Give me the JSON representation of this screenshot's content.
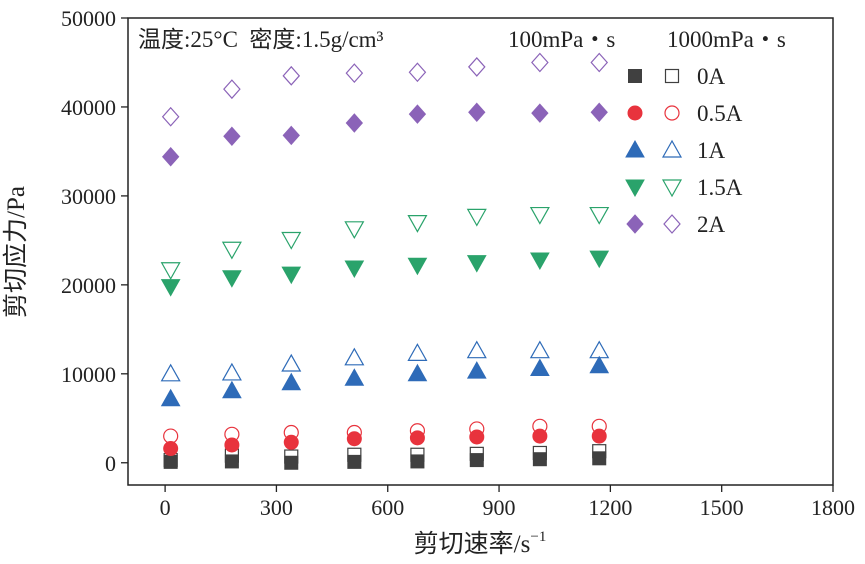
{
  "chart_data": {
    "type": "scatter",
    "title": "",
    "xlabel": "剪切速率/s",
    "xlabel_sup": "−1",
    "ylabel": "剪切应力/Pa",
    "xlim": [
      -100,
      1800
    ],
    "ylim": [
      -2500,
      50000
    ],
    "x_ticks": [
      0,
      300,
      600,
      900,
      1200,
      1500,
      1800
    ],
    "y_ticks": [
      0,
      10000,
      20000,
      30000,
      40000,
      50000
    ],
    "x_tick_labels": [
      "0",
      "300",
      "600",
      "900",
      "1200",
      "1500",
      "1800"
    ],
    "y_tick_labels": [
      "0",
      "10000",
      "20000",
      "30000",
      "40000",
      "50000"
    ],
    "grid": false,
    "legend_position": "right",
    "conditions": {
      "label": "温度:25°C  密度:1.5g/cm³",
      "filled_label": "100mPa・s",
      "hollow_label": "1000mPa・s"
    },
    "x": [
      15,
      180,
      340,
      510,
      680,
      840,
      1010,
      1170
    ],
    "series": [
      {
        "name": "0A",
        "marker": "square",
        "color": "#404040",
        "filled": [
          100,
          150,
          0,
          100,
          150,
          300,
          400,
          500
        ],
        "hollow": [
          300,
          800,
          700,
          900,
          900,
          1000,
          1100,
          1300
        ]
      },
      {
        "name": "0.5A",
        "marker": "circle",
        "color": "#e8333d",
        "filled": [
          1600,
          2000,
          2300,
          2700,
          2800,
          2900,
          3000,
          3000
        ],
        "hollow": [
          3000,
          3200,
          3400,
          3400,
          3600,
          3800,
          4100,
          4100
        ]
      },
      {
        "name": "1A",
        "marker": "triangle-up",
        "color": "#2e6bb8",
        "filled": [
          7200,
          8100,
          9000,
          9500,
          10000,
          10300,
          10600,
          10900
        ],
        "hollow": [
          10000,
          10100,
          11100,
          11800,
          12300,
          12600,
          12600,
          12600
        ]
      },
      {
        "name": "1.5A",
        "marker": "triangle-down",
        "color": "#2aa36b",
        "filled": [
          19800,
          20800,
          21200,
          21900,
          22200,
          22500,
          22800,
          23000
        ],
        "hollow": [
          21700,
          24000,
          25100,
          26300,
          27000,
          27700,
          27900,
          27900
        ]
      },
      {
        "name": "2A",
        "marker": "diamond",
        "color": "#8b63b8",
        "filled": [
          34400,
          36700,
          36800,
          38200,
          39200,
          39400,
          39300,
          39400
        ],
        "hollow": [
          38900,
          42000,
          43500,
          43800,
          43900,
          44500,
          45000,
          45000
        ]
      }
    ]
  }
}
